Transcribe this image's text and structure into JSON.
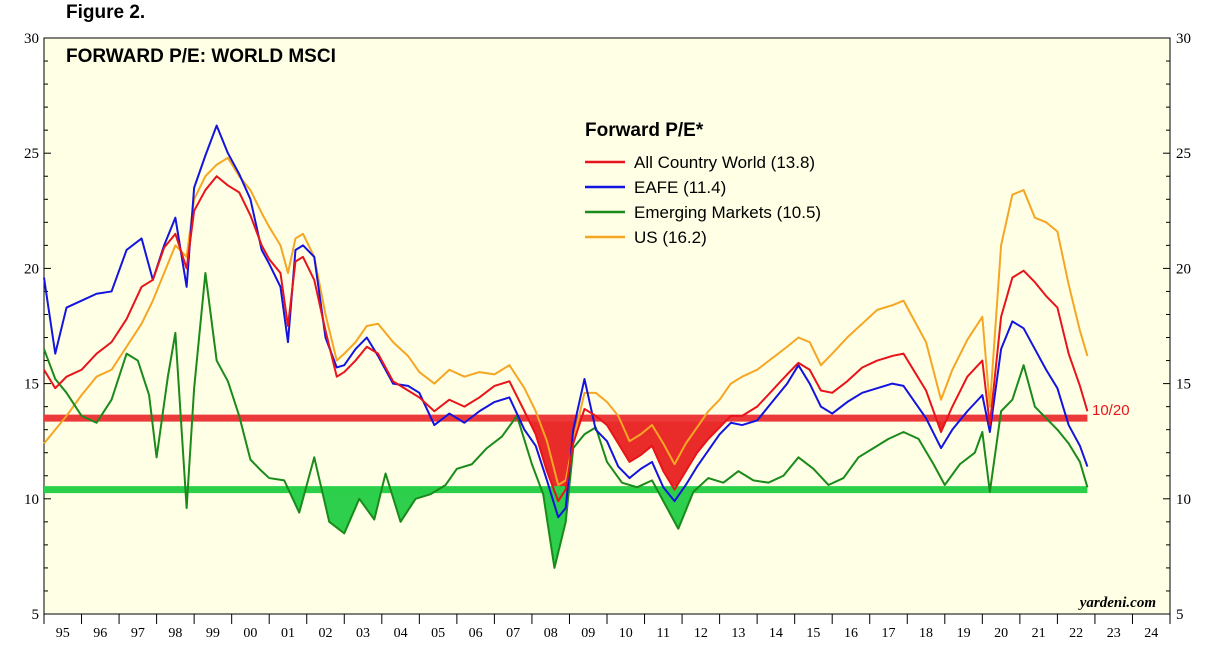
{
  "figure_label": "Figure 2.",
  "watermark": "yardeni.com",
  "colors": {
    "background": "#ffffe6",
    "acw": "#e8141b",
    "eafe": "#1414e0",
    "em": "#1a8a1a",
    "us": "#f5a623",
    "acw_avg": "#ec3a3a",
    "em_avg": "#2bd04a",
    "red_fill": "#e82020",
    "green_fill": "#22cc44"
  },
  "chart_data": {
    "type": "line",
    "title": "FORWARD P/E: WORLD MSCI",
    "legend_title": "Forward P/E*",
    "legend_placement": "top-center",
    "ylim": [
      5,
      30
    ],
    "yticks": [
      "5",
      "10",
      "15",
      "20",
      "25",
      "30"
    ],
    "xlim": [
      1995,
      2025
    ],
    "x_tick_labels": [
      "95",
      "96",
      "97",
      "98",
      "99",
      "00",
      "01",
      "02",
      "03",
      "04",
      "05",
      "06",
      "07",
      "08",
      "09",
      "10",
      "11",
      "12",
      "13",
      "14",
      "15",
      "16",
      "17",
      "18",
      "19",
      "20",
      "21",
      "22",
      "23",
      "24"
    ],
    "reference_lines": [
      {
        "series": "All Country World",
        "value": 13.5,
        "label": "10/20"
      },
      {
        "series": "Emerging Markets",
        "value": 10.4,
        "label": ""
      }
    ],
    "series": [
      {
        "name": "All Country World (13.8)",
        "color_key": "acw",
        "x": [
          1995.0,
          1995.3,
          1995.6,
          1996.0,
          1996.4,
          1996.8,
          1997.2,
          1997.6,
          1997.9,
          1998.2,
          1998.5,
          1998.8,
          1999.0,
          1999.3,
          1999.6,
          1999.9,
          2000.2,
          2000.5,
          2000.8,
          2001.0,
          2001.3,
          2001.5,
          2001.7,
          2001.9,
          2002.2,
          2002.5,
          2002.8,
          2003.0,
          2003.3,
          2003.6,
          2003.9,
          2004.3,
          2004.7,
          2005.0,
          2005.4,
          2005.8,
          2006.2,
          2006.6,
          2007.0,
          2007.4,
          2007.8,
          2008.1,
          2008.4,
          2008.7,
          2008.9,
          2009.1,
          2009.4,
          2009.7,
          2010.0,
          2010.3,
          2010.6,
          2010.9,
          2011.2,
          2011.5,
          2011.8,
          2012.1,
          2012.4,
          2012.7,
          2013.0,
          2013.3,
          2013.6,
          2014.0,
          2014.4,
          2014.8,
          2015.1,
          2015.4,
          2015.7,
          2016.0,
          2016.4,
          2016.8,
          2017.2,
          2017.6,
          2017.9,
          2018.2,
          2018.5,
          2018.9,
          2019.2,
          2019.6,
          2020.0,
          2020.2,
          2020.5,
          2020.8,
          2021.1,
          2021.4,
          2021.7,
          2022.0,
          2022.3,
          2022.6,
          2022.8
        ],
        "y": [
          15.6,
          14.8,
          15.3,
          15.6,
          16.3,
          16.8,
          17.8,
          19.2,
          19.5,
          20.9,
          21.5,
          20.0,
          22.5,
          23.4,
          24.0,
          23.6,
          23.3,
          22.3,
          21.0,
          20.4,
          19.8,
          17.5,
          20.3,
          20.5,
          19.5,
          17.3,
          15.3,
          15.5,
          16.0,
          16.6,
          16.3,
          15.1,
          14.7,
          14.4,
          13.8,
          14.3,
          14.0,
          14.4,
          14.9,
          15.1,
          13.8,
          12.8,
          11.2,
          9.9,
          10.4,
          12.4,
          13.9,
          13.6,
          13.2,
          12.4,
          11.6,
          11.9,
          12.3,
          11.2,
          10.4,
          11.2,
          12.0,
          12.6,
          13.1,
          13.6,
          13.6,
          14.0,
          14.7,
          15.4,
          15.9,
          15.6,
          14.7,
          14.6,
          15.1,
          15.7,
          16.0,
          16.2,
          16.3,
          15.5,
          14.7,
          12.9,
          14.0,
          15.3,
          16.0,
          13.2,
          17.9,
          19.6,
          19.9,
          19.4,
          18.8,
          18.3,
          16.3,
          14.9,
          13.8
        ]
      },
      {
        "name": "EAFE (11.4)",
        "color_key": "eafe",
        "x": [
          1995.0,
          1995.3,
          1995.6,
          1996.0,
          1996.4,
          1996.8,
          1997.2,
          1997.6,
          1997.9,
          1998.2,
          1998.5,
          1998.8,
          1999.0,
          1999.3,
          1999.6,
          1999.9,
          2000.2,
          2000.5,
          2000.8,
          2001.0,
          2001.3,
          2001.5,
          2001.7,
          2001.9,
          2002.2,
          2002.5,
          2002.8,
          2003.0,
          2003.3,
          2003.6,
          2003.9,
          2004.3,
          2004.7,
          2005.0,
          2005.4,
          2005.8,
          2006.2,
          2006.6,
          2007.0,
          2007.4,
          2007.8,
          2008.1,
          2008.4,
          2008.7,
          2008.9,
          2009.1,
          2009.4,
          2009.7,
          2010.0,
          2010.3,
          2010.6,
          2010.9,
          2011.2,
          2011.5,
          2011.8,
          2012.1,
          2012.4,
          2012.7,
          2013.0,
          2013.3,
          2013.6,
          2014.0,
          2014.4,
          2014.8,
          2015.1,
          2015.4,
          2015.7,
          2016.0,
          2016.4,
          2016.8,
          2017.2,
          2017.6,
          2017.9,
          2018.2,
          2018.5,
          2018.9,
          2019.2,
          2019.6,
          2020.0,
          2020.2,
          2020.5,
          2020.8,
          2021.1,
          2021.4,
          2021.7,
          2022.0,
          2022.3,
          2022.6,
          2022.8
        ],
        "y": [
          19.6,
          16.3,
          18.3,
          18.6,
          18.9,
          19.0,
          20.8,
          21.3,
          19.5,
          21.0,
          22.2,
          19.2,
          23.5,
          24.9,
          26.2,
          25.0,
          24.1,
          23.0,
          20.8,
          20.2,
          19.2,
          16.8,
          20.8,
          21.0,
          20.5,
          17.0,
          15.7,
          15.8,
          16.5,
          17.0,
          16.2,
          15.0,
          14.9,
          14.6,
          13.2,
          13.7,
          13.3,
          13.8,
          14.2,
          14.4,
          13.0,
          12.3,
          10.8,
          9.2,
          9.6,
          13.0,
          15.2,
          13.0,
          12.5,
          11.4,
          10.9,
          11.3,
          11.6,
          10.5,
          9.9,
          10.6,
          11.4,
          12.1,
          12.8,
          13.3,
          13.2,
          13.4,
          14.2,
          15.0,
          15.8,
          15.0,
          14.0,
          13.7,
          14.2,
          14.6,
          14.8,
          15.0,
          14.9,
          14.2,
          13.5,
          12.2,
          13.0,
          13.8,
          14.5,
          12.9,
          16.5,
          17.7,
          17.4,
          16.5,
          15.6,
          14.8,
          13.2,
          12.3,
          11.4
        ]
      },
      {
        "name": "Emerging Markets (10.5)",
        "color_key": "em",
        "x": [
          1995.0,
          1995.3,
          1995.6,
          1996.0,
          1996.4,
          1996.8,
          1997.2,
          1997.5,
          1997.8,
          1998.0,
          1998.3,
          1998.5,
          1998.8,
          1999.0,
          1999.3,
          1999.6,
          1999.9,
          2000.2,
          2000.5,
          2000.8,
          2001.0,
          2001.4,
          2001.8,
          2002.2,
          2002.6,
          2003.0,
          2003.4,
          2003.8,
          2004.1,
          2004.5,
          2004.9,
          2005.3,
          2005.7,
          2006.0,
          2006.4,
          2006.8,
          2007.2,
          2007.6,
          2008.0,
          2008.3,
          2008.6,
          2008.9,
          2009.1,
          2009.4,
          2009.7,
          2010.0,
          2010.4,
          2010.8,
          2011.2,
          2011.6,
          2011.9,
          2012.3,
          2012.7,
          2013.1,
          2013.5,
          2013.9,
          2014.3,
          2014.7,
          2015.1,
          2015.5,
          2015.9,
          2016.3,
          2016.7,
          2017.1,
          2017.5,
          2017.9,
          2018.3,
          2018.7,
          2019.0,
          2019.4,
          2019.8,
          2020.0,
          2020.2,
          2020.5,
          2020.8,
          2021.1,
          2021.4,
          2021.7,
          2022.0,
          2022.3,
          2022.6,
          2022.8
        ],
        "y": [
          16.5,
          15.2,
          14.6,
          13.6,
          13.3,
          14.3,
          16.3,
          16.0,
          14.5,
          11.8,
          15.3,
          17.2,
          9.6,
          14.8,
          19.8,
          16.0,
          15.1,
          13.6,
          11.7,
          11.2,
          10.9,
          10.8,
          9.4,
          11.8,
          9.0,
          8.5,
          10.0,
          9.1,
          11.1,
          9.0,
          10.0,
          10.2,
          10.6,
          11.3,
          11.5,
          12.2,
          12.7,
          13.6,
          11.5,
          10.2,
          7.0,
          9.0,
          12.2,
          12.8,
          13.1,
          11.6,
          10.7,
          10.5,
          10.8,
          9.6,
          8.7,
          10.3,
          10.9,
          10.7,
          11.2,
          10.8,
          10.7,
          11.0,
          11.8,
          11.3,
          10.6,
          10.9,
          11.8,
          12.2,
          12.6,
          12.9,
          12.6,
          11.5,
          10.6,
          11.5,
          12.0,
          12.9,
          10.3,
          13.8,
          14.3,
          15.8,
          14.0,
          13.5,
          13.0,
          12.4,
          11.6,
          10.5
        ]
      },
      {
        "name": "US (16.2)",
        "color_key": "us",
        "x": [
          1995.0,
          1995.3,
          1995.6,
          1996.0,
          1996.4,
          1996.8,
          1997.2,
          1997.6,
          1997.9,
          1998.2,
          1998.5,
          1998.8,
          1999.0,
          1999.3,
          1999.6,
          1999.9,
          2000.2,
          2000.5,
          2000.8,
          2001.0,
          2001.3,
          2001.5,
          2001.7,
          2001.9,
          2002.2,
          2002.5,
          2002.8,
          2003.0,
          2003.3,
          2003.6,
          2003.9,
          2004.3,
          2004.7,
          2005.0,
          2005.4,
          2005.8,
          2006.2,
          2006.6,
          2007.0,
          2007.4,
          2007.8,
          2008.1,
          2008.4,
          2008.7,
          2008.9,
          2009.1,
          2009.4,
          2009.7,
          2010.0,
          2010.3,
          2010.6,
          2010.9,
          2011.2,
          2011.5,
          2011.8,
          2012.1,
          2012.4,
          2012.7,
          2013.0,
          2013.3,
          2013.6,
          2014.0,
          2014.4,
          2014.8,
          2015.1,
          2015.4,
          2015.7,
          2016.0,
          2016.4,
          2016.8,
          2017.2,
          2017.6,
          2017.9,
          2018.2,
          2018.5,
          2018.9,
          2019.2,
          2019.6,
          2020.0,
          2020.2,
          2020.5,
          2020.8,
          2021.1,
          2021.4,
          2021.7,
          2022.0,
          2022.3,
          2022.6,
          2022.8
        ],
        "y": [
          12.4,
          13.0,
          13.6,
          14.5,
          15.3,
          15.6,
          16.6,
          17.6,
          18.6,
          19.8,
          21.0,
          20.5,
          23.0,
          24.0,
          24.5,
          24.8,
          24.0,
          23.4,
          22.4,
          21.8,
          21.0,
          19.8,
          21.3,
          21.5,
          20.5,
          18.0,
          16.0,
          16.3,
          16.8,
          17.5,
          17.6,
          16.8,
          16.2,
          15.5,
          15.0,
          15.6,
          15.3,
          15.5,
          15.4,
          15.8,
          14.8,
          13.8,
          12.5,
          10.6,
          10.8,
          12.5,
          14.6,
          14.6,
          14.2,
          13.6,
          12.5,
          12.8,
          13.2,
          12.4,
          11.5,
          12.4,
          13.1,
          13.8,
          14.3,
          15.0,
          15.3,
          15.6,
          16.1,
          16.6,
          17.0,
          16.8,
          15.8,
          16.3,
          17.0,
          17.6,
          18.2,
          18.4,
          18.6,
          17.7,
          16.8,
          14.3,
          15.6,
          16.9,
          17.9,
          14.0,
          21.0,
          23.2,
          23.4,
          22.2,
          22.0,
          21.6,
          19.3,
          17.3,
          16.2
        ]
      }
    ]
  }
}
